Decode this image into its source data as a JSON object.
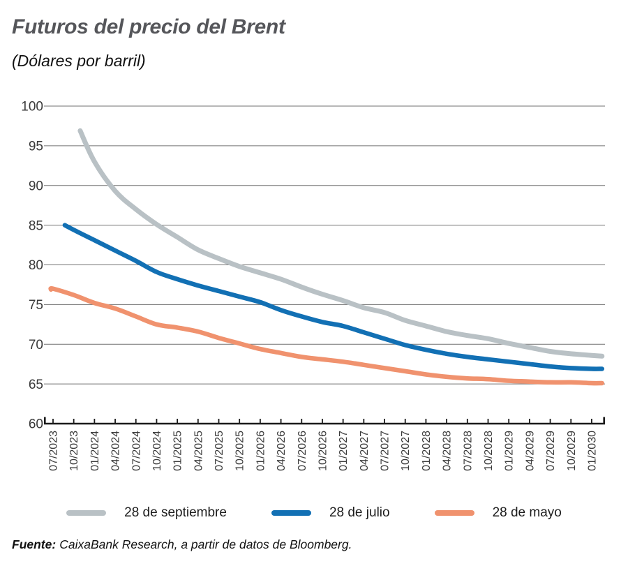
{
  "title": "Futuros del precio del Brent",
  "subtitle": "(Dólares por barril)",
  "source": {
    "label": "Fuente:",
    "text": "CaixaBank Research, a partir de datos de Bloomberg."
  },
  "colors": {
    "gridline": "#707070",
    "axis": "#1a1a1a",
    "tick_label": "#3a3a3a"
  },
  "chart_data": {
    "type": "line",
    "title": "Futuros del precio del Brent",
    "ylabel": "Dólares por barril",
    "xlabel": "",
    "ylim": [
      60,
      100
    ],
    "ytick_step": 5,
    "yticks": [
      60,
      65,
      70,
      75,
      80,
      85,
      90,
      95,
      100
    ],
    "grid": "horizontal",
    "legend_position": "bottom",
    "categories": [
      "07/2023",
      "10/2023",
      "01/2024",
      "04/2024",
      "07/2024",
      "10/2024",
      "01/2025",
      "04/2025",
      "07/2025",
      "10/2025",
      "01/2026",
      "04/2026",
      "07/2026",
      "10/2026",
      "01/2027",
      "04/2027",
      "07/2027",
      "10/2027",
      "01/2028",
      "04/2028",
      "07/2028",
      "10/2028",
      "01/2029",
      "04/2029",
      "07/2029",
      "10/2029",
      "01/2030"
    ],
    "series": [
      {
        "name": "28 de septiembre",
        "color": "#b9c1c5",
        "stroke_width": 7,
        "points": [
          [
            1.31,
            96.9
          ],
          [
            2,
            93.0
          ],
          [
            3,
            89.3
          ],
          [
            4,
            87.0
          ],
          [
            5,
            85.1
          ],
          [
            6,
            83.5
          ],
          [
            7,
            81.9
          ],
          [
            8,
            80.8
          ],
          [
            9,
            79.8
          ],
          [
            10,
            79.0
          ],
          [
            11,
            78.2
          ],
          [
            12,
            77.2
          ],
          [
            13,
            76.3
          ],
          [
            14,
            75.5
          ],
          [
            15,
            74.6
          ],
          [
            16,
            74.0
          ],
          [
            17,
            73.0
          ],
          [
            18,
            72.3
          ],
          [
            19,
            71.6
          ],
          [
            20,
            71.1
          ],
          [
            21,
            70.7
          ],
          [
            22,
            70.1
          ],
          [
            23,
            69.6
          ],
          [
            24,
            69.1
          ],
          [
            25,
            68.8
          ],
          [
            26,
            68.6
          ],
          [
            26.5,
            68.5
          ]
        ]
      },
      {
        "name": "28 de julio",
        "color": "#1270b4",
        "stroke_width": 6.5,
        "points": [
          [
            0.57,
            85.0
          ],
          [
            1,
            84.4
          ],
          [
            2,
            83.1
          ],
          [
            3,
            81.8
          ],
          [
            4,
            80.5
          ],
          [
            5,
            79.1
          ],
          [
            6,
            78.2
          ],
          [
            7,
            77.4
          ],
          [
            8,
            76.7
          ],
          [
            9,
            76.0
          ],
          [
            10,
            75.3
          ],
          [
            11,
            74.3
          ],
          [
            12,
            73.5
          ],
          [
            13,
            72.8
          ],
          [
            14,
            72.3
          ],
          [
            15,
            71.5
          ],
          [
            16,
            70.7
          ],
          [
            17,
            69.9
          ],
          [
            18,
            69.3
          ],
          [
            19,
            68.8
          ],
          [
            20,
            68.4
          ],
          [
            21,
            68.1
          ],
          [
            22,
            67.8
          ],
          [
            23,
            67.5
          ],
          [
            24,
            67.2
          ],
          [
            25,
            67.0
          ],
          [
            26,
            66.9
          ],
          [
            26.5,
            66.9
          ]
        ]
      },
      {
        "name": "28 de mayo",
        "color": "#f0926e",
        "stroke_width": 6.5,
        "points": [
          [
            -0.1,
            76.9
          ],
          [
            0,
            77.0
          ],
          [
            1,
            76.2
          ],
          [
            2,
            75.2
          ],
          [
            3,
            74.5
          ],
          [
            4,
            73.5
          ],
          [
            5,
            72.5
          ],
          [
            6,
            72.1
          ],
          [
            7,
            71.6
          ],
          [
            8,
            70.8
          ],
          [
            9,
            70.1
          ],
          [
            10,
            69.4
          ],
          [
            11,
            68.9
          ],
          [
            12,
            68.4
          ],
          [
            13,
            68.1
          ],
          [
            14,
            67.8
          ],
          [
            15,
            67.4
          ],
          [
            16,
            67.0
          ],
          [
            17,
            66.6
          ],
          [
            18,
            66.2
          ],
          [
            19,
            65.9
          ],
          [
            20,
            65.7
          ],
          [
            21,
            65.6
          ],
          [
            22,
            65.4
          ],
          [
            23,
            65.3
          ],
          [
            24,
            65.2
          ],
          [
            25,
            65.2
          ],
          [
            26,
            65.1
          ],
          [
            26.5,
            65.1
          ]
        ]
      }
    ]
  }
}
